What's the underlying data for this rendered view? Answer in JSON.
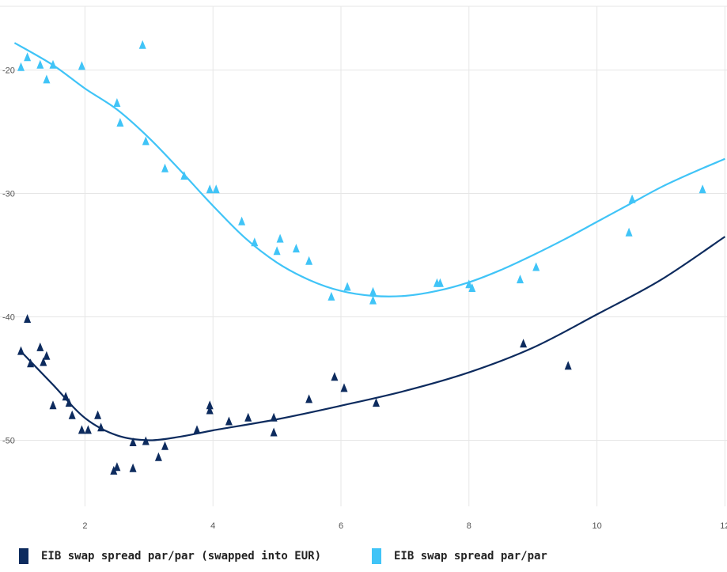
{
  "chart_data": {
    "type": "scatter",
    "title": "",
    "xlabel": "",
    "ylabel": "",
    "xlim": [
      1,
      12
    ],
    "ylim": [
      -56,
      -15
    ],
    "x_ticks": [
      2,
      4,
      6,
      8,
      10,
      12
    ],
    "x_tick_labels": [
      "2",
      "4",
      "6",
      "8",
      "10",
      "12"
    ],
    "y_ticks": [
      -50,
      -40,
      -30,
      -20
    ],
    "y_tick_labels": [
      "-50",
      "-40",
      "-30",
      "-20"
    ],
    "grid": true,
    "legend_position": "bottom",
    "marker": "triangle",
    "series": [
      {
        "name": "EIB swap spread par/par (swapped into EUR)",
        "color": "#0d2b5e",
        "points": [
          [
            1.0,
            -42.8
          ],
          [
            1.1,
            -40.2
          ],
          [
            1.15,
            -43.8
          ],
          [
            1.3,
            -42.5
          ],
          [
            1.35,
            -43.7
          ],
          [
            1.4,
            -43.2
          ],
          [
            1.5,
            -47.2
          ],
          [
            1.7,
            -46.5
          ],
          [
            1.75,
            -47.0
          ],
          [
            1.8,
            -48.0
          ],
          [
            1.95,
            -49.2
          ],
          [
            2.05,
            -49.2
          ],
          [
            2.2,
            -48.0
          ],
          [
            2.25,
            -49.0
          ],
          [
            2.45,
            -52.5
          ],
          [
            2.5,
            -52.2
          ],
          [
            2.75,
            -52.3
          ],
          [
            2.75,
            -50.2
          ],
          [
            2.95,
            -50.1
          ],
          [
            3.15,
            -51.4
          ],
          [
            3.25,
            -50.5
          ],
          [
            3.75,
            -49.2
          ],
          [
            3.95,
            -47.2
          ],
          [
            3.95,
            -47.6
          ],
          [
            4.25,
            -48.5
          ],
          [
            4.55,
            -48.2
          ],
          [
            4.95,
            -49.4
          ],
          [
            4.95,
            -48.2
          ],
          [
            5.5,
            -46.7
          ],
          [
            5.9,
            -44.9
          ],
          [
            6.05,
            -45.8
          ],
          [
            6.55,
            -47.0
          ],
          [
            8.85,
            -42.2
          ],
          [
            9.55,
            -44.0
          ]
        ],
        "trend": [
          [
            1.0,
            -42.8
          ],
          [
            1.5,
            -45.5
          ],
          [
            2.0,
            -48.2
          ],
          [
            2.5,
            -49.6
          ],
          [
            3.0,
            -50.0
          ],
          [
            3.5,
            -49.7
          ],
          [
            4.0,
            -49.2
          ],
          [
            5.0,
            -48.3
          ],
          [
            6.0,
            -47.2
          ],
          [
            7.0,
            -46.0
          ],
          [
            8.0,
            -44.5
          ],
          [
            9.0,
            -42.5
          ],
          [
            10.0,
            -39.8
          ],
          [
            11.0,
            -37.0
          ],
          [
            12.0,
            -33.5
          ]
        ]
      },
      {
        "name": "EIB swap spread par/par",
        "color": "#40c4f7",
        "points": [
          [
            1.0,
            -19.8
          ],
          [
            1.1,
            -19.0
          ],
          [
            1.3,
            -19.6
          ],
          [
            1.4,
            -20.8
          ],
          [
            1.5,
            -19.6
          ],
          [
            1.95,
            -19.7
          ],
          [
            2.9,
            -18.0
          ],
          [
            2.5,
            -22.7
          ],
          [
            2.55,
            -24.3
          ],
          [
            2.95,
            -25.8
          ],
          [
            3.25,
            -28.0
          ],
          [
            3.55,
            -28.6
          ],
          [
            3.95,
            -29.7
          ],
          [
            4.05,
            -29.7
          ],
          [
            4.45,
            -32.3
          ],
          [
            4.65,
            -34.0
          ],
          [
            5.0,
            -34.7
          ],
          [
            5.05,
            -33.7
          ],
          [
            5.3,
            -34.5
          ],
          [
            5.5,
            -35.5
          ],
          [
            5.85,
            -38.4
          ],
          [
            6.1,
            -37.6
          ],
          [
            6.5,
            -38.0
          ],
          [
            6.5,
            -38.7
          ],
          [
            7.5,
            -37.3
          ],
          [
            7.55,
            -37.3
          ],
          [
            8.0,
            -37.4
          ],
          [
            8.05,
            -37.7
          ],
          [
            8.8,
            -37.0
          ],
          [
            9.05,
            -36.0
          ],
          [
            10.5,
            -33.2
          ],
          [
            10.55,
            -30.5
          ],
          [
            11.65,
            -29.7
          ]
        ],
        "trend": [
          [
            0.9,
            -17.8
          ],
          [
            1.5,
            -19.6
          ],
          [
            2.0,
            -21.5
          ],
          [
            2.5,
            -23.2
          ],
          [
            3.0,
            -25.5
          ],
          [
            3.5,
            -28.2
          ],
          [
            4.0,
            -31.0
          ],
          [
            4.5,
            -33.6
          ],
          [
            5.0,
            -35.6
          ],
          [
            5.5,
            -37.0
          ],
          [
            6.0,
            -37.9
          ],
          [
            6.5,
            -38.3
          ],
          [
            7.0,
            -38.3
          ],
          [
            7.5,
            -37.9
          ],
          [
            8.0,
            -37.2
          ],
          [
            8.5,
            -36.2
          ],
          [
            9.0,
            -35.0
          ],
          [
            9.5,
            -33.7
          ],
          [
            10.0,
            -32.3
          ],
          [
            10.5,
            -30.9
          ],
          [
            11.0,
            -29.5
          ],
          [
            11.5,
            -28.3
          ],
          [
            12.0,
            -27.2
          ]
        ]
      }
    ]
  }
}
